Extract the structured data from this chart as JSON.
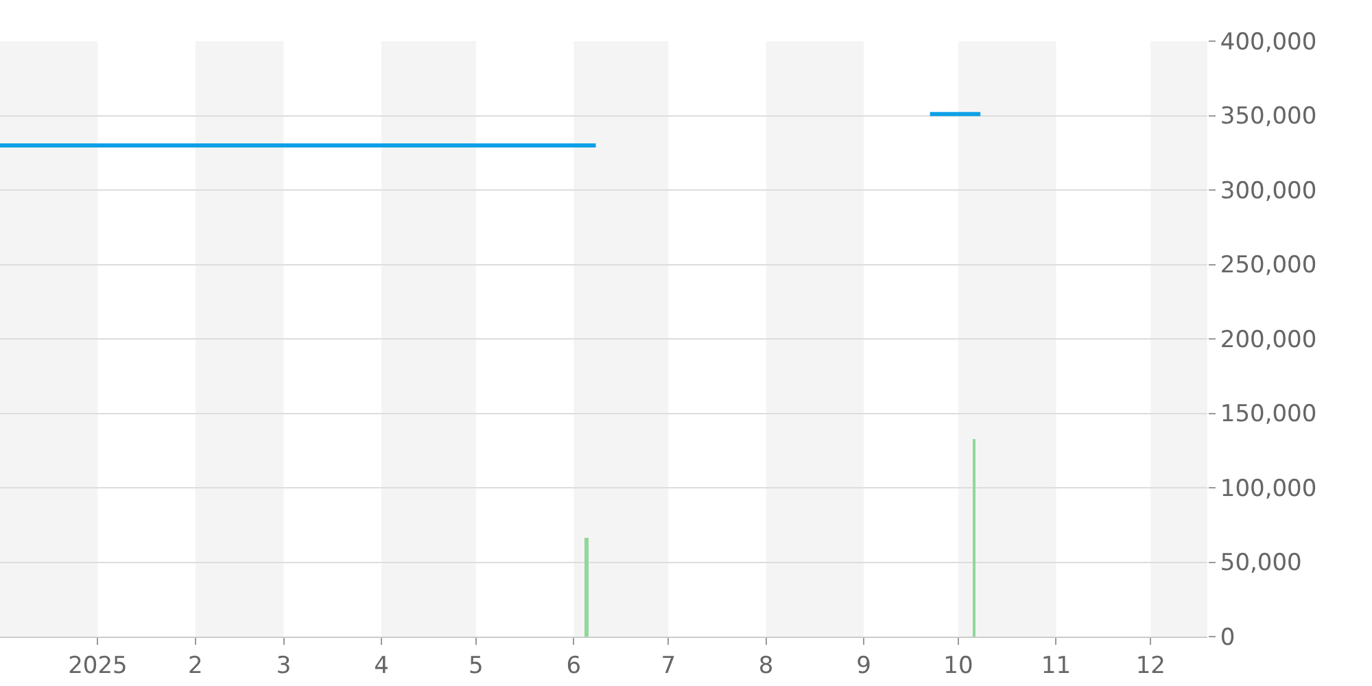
{
  "chart_data": {
    "type": "line",
    "series": [
      {
        "color": "#0ea0e6",
        "x": [
          "2024-12-01",
          "2025-06-08"
        ],
        "values": [
          330000,
          330000
        ]
      },
      {
        "color": "#0ea0e6",
        "x": [
          "2025-09-22",
          "2025-10-08"
        ],
        "values": [
          351000,
          351000
        ]
      },
      {
        "type": "bar",
        "color": "#8fd89a",
        "x": [
          "2025-06-05",
          "2025-10-06"
        ],
        "values": [
          66000,
          133000
        ]
      }
    ],
    "xlim": [
      "2024-12-01",
      "2025-12-19"
    ],
    "xticks": [
      {
        "value": "2025-01-01",
        "label": "2025"
      },
      {
        "value": "2025-02-01",
        "label": "2"
      },
      {
        "value": "2025-03-01",
        "label": "3"
      },
      {
        "value": "2025-04-01",
        "label": "4"
      },
      {
        "value": "2025-05-01",
        "label": "5"
      },
      {
        "value": "2025-06-01",
        "label": "6"
      },
      {
        "value": "2025-07-01",
        "label": "7"
      },
      {
        "value": "2025-08-01",
        "label": "8"
      },
      {
        "value": "2025-09-01",
        "label": "9"
      },
      {
        "value": "2025-10-01",
        "label": "10"
      },
      {
        "value": "2025-11-01",
        "label": "11"
      },
      {
        "value": "2025-12-01",
        "label": "12"
      }
    ],
    "ylim": [
      0,
      400000
    ],
    "yticks": [
      {
        "value": 0,
        "label": "0"
      },
      {
        "value": 50000,
        "label": "50,000"
      },
      {
        "value": 100000,
        "label": "100,000"
      },
      {
        "value": 150000,
        "label": "150,000"
      },
      {
        "value": 200000,
        "label": "200,000"
      },
      {
        "value": 250000,
        "label": "250,000"
      },
      {
        "value": 300000,
        "label": "300,000"
      },
      {
        "value": 350000,
        "label": "350,000"
      },
      {
        "value": 400000,
        "label": "400,000"
      }
    ],
    "grid": "y",
    "marker": "none",
    "line_style": "solid",
    "bands": [
      {
        "axis": "x",
        "from": "2024-12-01",
        "to": "2025-01-01",
        "color": "#f4f4f4"
      },
      {
        "axis": "x",
        "from": "2025-02-01",
        "to": "2025-03-01",
        "color": "#f4f4f4"
      },
      {
        "axis": "x",
        "from": "2025-04-01",
        "to": "2025-05-01",
        "color": "#f4f4f4"
      },
      {
        "axis": "x",
        "from": "2025-06-01",
        "to": "2025-07-01",
        "color": "#f4f4f4"
      },
      {
        "axis": "x",
        "from": "2025-08-01",
        "to": "2025-09-01",
        "color": "#f4f4f4"
      },
      {
        "axis": "x",
        "from": "2025-10-01",
        "to": "2025-11-01",
        "color": "#f4f4f4"
      },
      {
        "axis": "x",
        "from": "2025-12-01",
        "to": "2025-12-19",
        "color": "#f4f4f4"
      }
    ]
  }
}
